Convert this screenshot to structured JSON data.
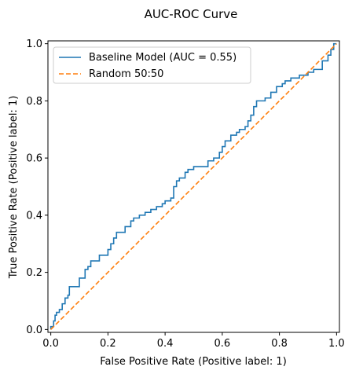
{
  "chart_data": {
    "type": "line",
    "title": "AUC-ROC Curve",
    "xlabel": "False Positive Rate (Positive label: 1)",
    "ylabel": "True Positive Rate (Positive label: 1)",
    "xlim": [
      -0.01,
      1.01
    ],
    "ylim": [
      -0.01,
      1.01
    ],
    "xticks": [
      0.0,
      0.2,
      0.4,
      0.6,
      0.8,
      1.0
    ],
    "yticks": [
      0.0,
      0.2,
      0.4,
      0.6,
      0.8,
      1.0
    ],
    "xtick_labels": [
      "0.0",
      "0.2",
      "0.4",
      "0.6",
      "0.8",
      "1.0"
    ],
    "ytick_labels": [
      "0.0",
      "0.2",
      "0.4",
      "0.6",
      "0.8",
      "1.0"
    ],
    "grid": false,
    "legend_position": "top-left",
    "series": [
      {
        "name": "Baseline Model (AUC = 0.55)",
        "color": "#1f77b4",
        "style": "step",
        "points": [
          [
            0.0,
            0.0
          ],
          [
            0.0,
            0.01
          ],
          [
            0.01,
            0.01
          ],
          [
            0.01,
            0.03
          ],
          [
            0.015,
            0.03
          ],
          [
            0.015,
            0.05
          ],
          [
            0.02,
            0.05
          ],
          [
            0.02,
            0.06
          ],
          [
            0.03,
            0.06
          ],
          [
            0.03,
            0.07
          ],
          [
            0.04,
            0.07
          ],
          [
            0.04,
            0.09
          ],
          [
            0.05,
            0.09
          ],
          [
            0.05,
            0.11
          ],
          [
            0.06,
            0.11
          ],
          [
            0.06,
            0.12
          ],
          [
            0.065,
            0.12
          ],
          [
            0.065,
            0.15
          ],
          [
            0.1,
            0.15
          ],
          [
            0.1,
            0.18
          ],
          [
            0.12,
            0.18
          ],
          [
            0.12,
            0.21
          ],
          [
            0.13,
            0.21
          ],
          [
            0.13,
            0.22
          ],
          [
            0.14,
            0.22
          ],
          [
            0.14,
            0.24
          ],
          [
            0.17,
            0.24
          ],
          [
            0.17,
            0.26
          ],
          [
            0.2,
            0.26
          ],
          [
            0.2,
            0.28
          ],
          [
            0.21,
            0.28
          ],
          [
            0.21,
            0.3
          ],
          [
            0.22,
            0.3
          ],
          [
            0.22,
            0.32
          ],
          [
            0.23,
            0.32
          ],
          [
            0.23,
            0.34
          ],
          [
            0.26,
            0.34
          ],
          [
            0.26,
            0.36
          ],
          [
            0.28,
            0.36
          ],
          [
            0.28,
            0.38
          ],
          [
            0.29,
            0.38
          ],
          [
            0.29,
            0.39
          ],
          [
            0.31,
            0.39
          ],
          [
            0.31,
            0.4
          ],
          [
            0.33,
            0.4
          ],
          [
            0.33,
            0.41
          ],
          [
            0.35,
            0.41
          ],
          [
            0.35,
            0.42
          ],
          [
            0.37,
            0.42
          ],
          [
            0.37,
            0.43
          ],
          [
            0.39,
            0.43
          ],
          [
            0.39,
            0.44
          ],
          [
            0.4,
            0.44
          ],
          [
            0.4,
            0.45
          ],
          [
            0.42,
            0.45
          ],
          [
            0.42,
            0.46
          ],
          [
            0.43,
            0.46
          ],
          [
            0.43,
            0.5
          ],
          [
            0.44,
            0.5
          ],
          [
            0.44,
            0.52
          ],
          [
            0.45,
            0.52
          ],
          [
            0.45,
            0.53
          ],
          [
            0.47,
            0.53
          ],
          [
            0.47,
            0.55
          ],
          [
            0.48,
            0.55
          ],
          [
            0.48,
            0.56
          ],
          [
            0.5,
            0.56
          ],
          [
            0.5,
            0.57
          ],
          [
            0.55,
            0.57
          ],
          [
            0.55,
            0.59
          ],
          [
            0.57,
            0.59
          ],
          [
            0.57,
            0.6
          ],
          [
            0.59,
            0.6
          ],
          [
            0.59,
            0.62
          ],
          [
            0.6,
            0.62
          ],
          [
            0.6,
            0.64
          ],
          [
            0.61,
            0.64
          ],
          [
            0.61,
            0.66
          ],
          [
            0.63,
            0.66
          ],
          [
            0.63,
            0.68
          ],
          [
            0.65,
            0.68
          ],
          [
            0.65,
            0.69
          ],
          [
            0.66,
            0.69
          ],
          [
            0.66,
            0.7
          ],
          [
            0.68,
            0.7
          ],
          [
            0.68,
            0.71
          ],
          [
            0.69,
            0.71
          ],
          [
            0.69,
            0.73
          ],
          [
            0.7,
            0.73
          ],
          [
            0.7,
            0.75
          ],
          [
            0.71,
            0.75
          ],
          [
            0.71,
            0.78
          ],
          [
            0.72,
            0.78
          ],
          [
            0.72,
            0.8
          ],
          [
            0.75,
            0.8
          ],
          [
            0.75,
            0.81
          ],
          [
            0.77,
            0.81
          ],
          [
            0.77,
            0.83
          ],
          [
            0.79,
            0.83
          ],
          [
            0.79,
            0.85
          ],
          [
            0.81,
            0.85
          ],
          [
            0.81,
            0.86
          ],
          [
            0.82,
            0.86
          ],
          [
            0.82,
            0.87
          ],
          [
            0.84,
            0.87
          ],
          [
            0.84,
            0.88
          ],
          [
            0.87,
            0.88
          ],
          [
            0.87,
            0.89
          ],
          [
            0.9,
            0.89
          ],
          [
            0.9,
            0.9
          ],
          [
            0.92,
            0.9
          ],
          [
            0.92,
            0.91
          ],
          [
            0.95,
            0.91
          ],
          [
            0.95,
            0.94
          ],
          [
            0.97,
            0.94
          ],
          [
            0.97,
            0.96
          ],
          [
            0.98,
            0.96
          ],
          [
            0.98,
            0.98
          ],
          [
            0.99,
            0.98
          ],
          [
            0.99,
            1.0
          ],
          [
            1.0,
            1.0
          ]
        ]
      },
      {
        "name": "Random 50:50",
        "color": "#ff7f0e",
        "style": "dashed",
        "points": [
          [
            0.0,
            0.0
          ],
          [
            1.0,
            1.0
          ]
        ]
      }
    ]
  }
}
